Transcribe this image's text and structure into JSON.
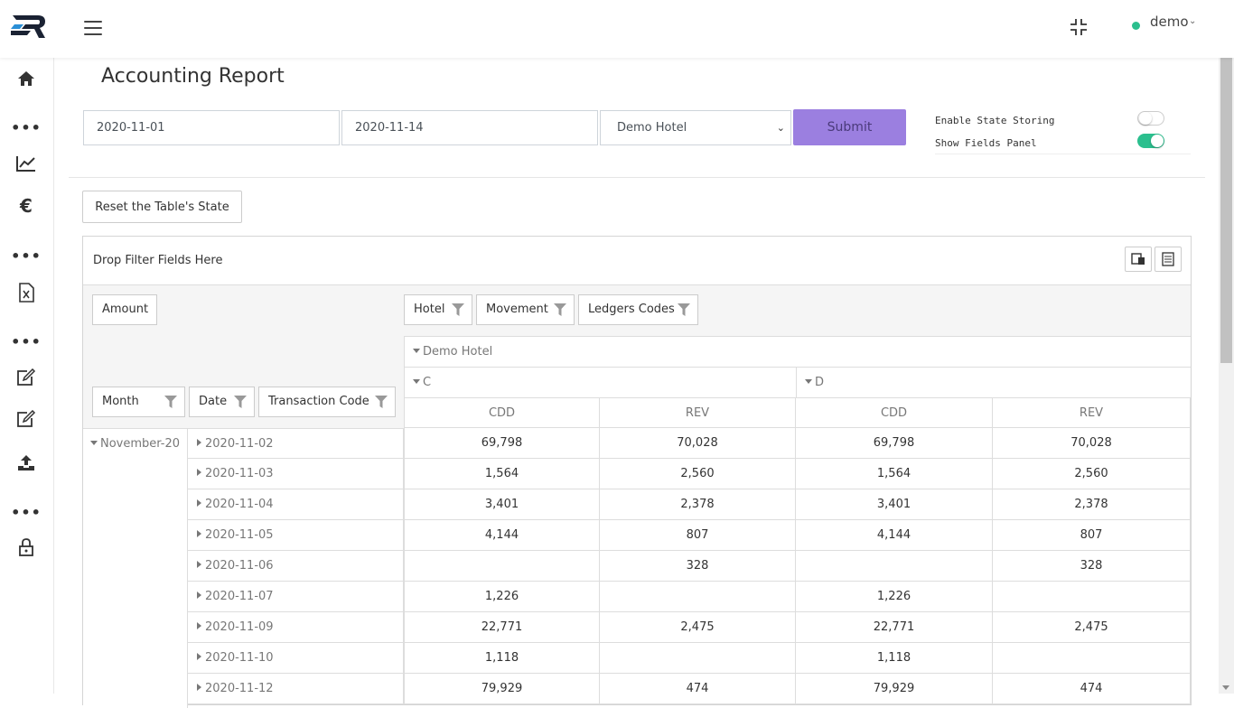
{
  "header": {
    "user_name": "demo"
  },
  "page": {
    "title": "Accounting Report"
  },
  "filters": {
    "date_from": "2020-11-01",
    "date_to": "2020-11-14",
    "hotel": "Demo Hotel",
    "submit_label": "Submit"
  },
  "settings": {
    "state_storing_label": "Enable State Storing",
    "state_storing_on": false,
    "fields_panel_label": "Show Fields Panel",
    "fields_panel_on": true
  },
  "reset_label": "Reset the Table's State",
  "pivot": {
    "drop_filter_text": "Drop Filter Fields Here",
    "data_field": "Amount",
    "column_fields": [
      "Hotel",
      "Movement",
      "Ledgers Codes"
    ],
    "row_fields": [
      "Month",
      "Date",
      "Transaction Code"
    ],
    "hotel_header": "Demo Hotel",
    "movements": [
      "C",
      "D"
    ],
    "ledger_codes": [
      "CDD",
      "REV",
      "CDD",
      "REV"
    ],
    "month": "November-20",
    "rows": [
      {
        "date": "2020-11-02",
        "values": [
          "69,798",
          "70,028",
          "69,798",
          "70,028"
        ]
      },
      {
        "date": "2020-11-03",
        "values": [
          "1,564",
          "2,560",
          "1,564",
          "2,560"
        ]
      },
      {
        "date": "2020-11-04",
        "values": [
          "3,401",
          "2,378",
          "3,401",
          "2,378"
        ]
      },
      {
        "date": "2020-11-05",
        "values": [
          "4,144",
          "807",
          "4,144",
          "807"
        ]
      },
      {
        "date": "2020-11-06",
        "values": [
          "",
          "328",
          "",
          "328"
        ]
      },
      {
        "date": "2020-11-07",
        "values": [
          "1,226",
          "",
          "1,226",
          ""
        ]
      },
      {
        "date": "2020-11-09",
        "values": [
          "22,771",
          "2,475",
          "22,771",
          "2,475"
        ]
      },
      {
        "date": "2020-11-10",
        "values": [
          "1,118",
          "",
          "1,118",
          ""
        ]
      },
      {
        "date": "2020-11-12",
        "values": [
          "79,929",
          "474",
          "79,929",
          "474"
        ]
      }
    ]
  },
  "colors": {
    "accent": "#9b7fe0",
    "toggle_on": "#2bbf8e",
    "status_online": "#2bbf8e"
  },
  "icons": {
    "sidebar": [
      "home-icon",
      "more-icon",
      "chart-line-icon",
      "euro-icon",
      "more-icon",
      "excel-file-icon",
      "more-icon",
      "edit-square-icon",
      "edit-icon",
      "upload-icon",
      "more-icon",
      "lock-icon"
    ]
  }
}
